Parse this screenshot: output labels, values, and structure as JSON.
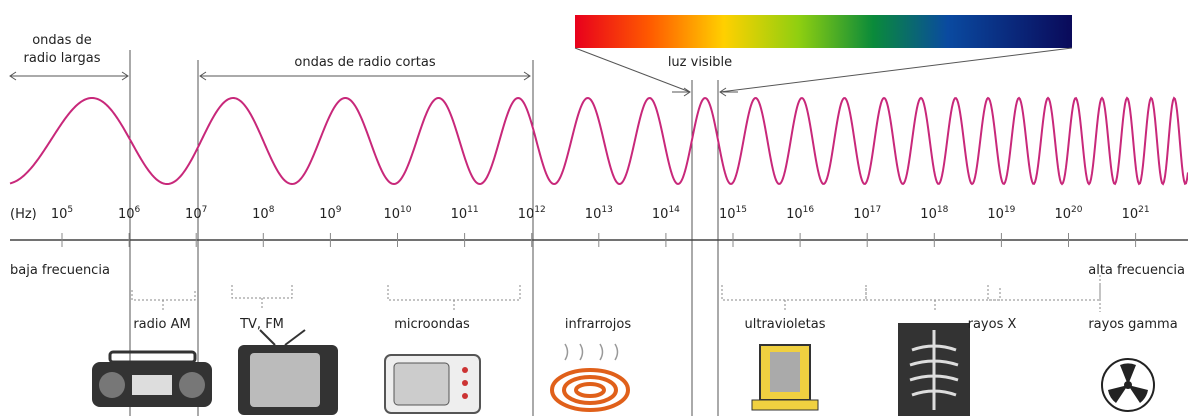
{
  "labels": {
    "long_waves": [
      "ondas de",
      "radio largas"
    ],
    "short_waves": "ondas de radio cortas",
    "visible_light": "luz visible",
    "unit": "(Hz)",
    "low": "baja frecuencia",
    "high": "alta frecuencia"
  },
  "frequencies": [
    {
      "base": "10",
      "exponent": "5"
    },
    {
      "base": "10",
      "exponent": "6"
    },
    {
      "base": "10",
      "exponent": "7"
    },
    {
      "base": "10",
      "exponent": "8"
    },
    {
      "base": "10",
      "exponent": "9"
    },
    {
      "base": "10",
      "exponent": "10"
    },
    {
      "base": "10",
      "exponent": "11"
    },
    {
      "base": "10",
      "exponent": "12"
    },
    {
      "base": "10",
      "exponent": "13"
    },
    {
      "base": "10",
      "exponent": "14"
    },
    {
      "base": "10",
      "exponent": "15"
    },
    {
      "base": "10",
      "exponent": "16"
    },
    {
      "base": "10",
      "exponent": "17"
    },
    {
      "base": "10",
      "exponent": "18"
    },
    {
      "base": "10",
      "exponent": "19"
    },
    {
      "base": "10",
      "exponent": "20"
    },
    {
      "base": "10",
      "exponent": "21"
    }
  ],
  "bands": [
    "radio AM",
    "TV, FM",
    "microondas",
    "infrarrojos",
    "ultravioletas",
    "rayos X",
    "rayos gamma"
  ]
}
